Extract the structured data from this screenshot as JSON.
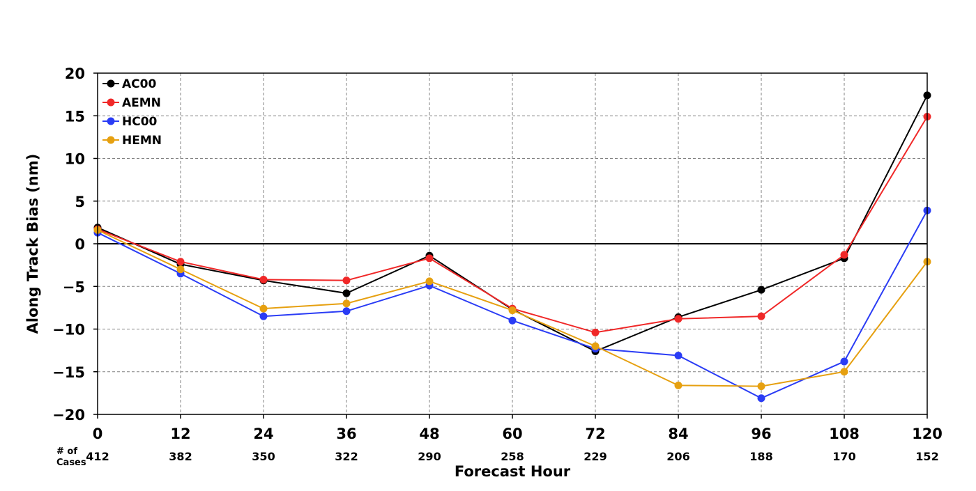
{
  "chart_data": {
    "type": "line",
    "title": "",
    "xlabel": "Forecast Hour",
    "ylabel": "Along Track Bias (nm)",
    "x": [
      0,
      12,
      24,
      36,
      48,
      60,
      72,
      84,
      96,
      108,
      120
    ],
    "xlim": [
      0,
      120
    ],
    "ylim": [
      -20,
      20
    ],
    "x_ticks": [
      0,
      12,
      24,
      36,
      48,
      60,
      72,
      84,
      96,
      108,
      120
    ],
    "y_ticks": [
      20,
      15,
      10,
      5,
      0,
      -5,
      -10,
      -15,
      -20
    ],
    "y_tick_labels": [
      "20",
      "15",
      "10",
      "5",
      "0",
      "−5",
      "−10",
      "−15",
      "−20"
    ],
    "grid": true,
    "zero_line": true,
    "legend_position": "upper-left",
    "cases_label_line1": "# of",
    "cases_label_line2": "Cases",
    "cases": [
      "412",
      "382",
      "350",
      "322",
      "290",
      "258",
      "229",
      "206",
      "188",
      "170",
      "152"
    ],
    "series": [
      {
        "name": "AC00",
        "color": "#000000",
        "values": [
          1.9,
          -2.4,
          -4.3,
          -5.8,
          -1.4,
          -7.7,
          -12.6,
          -8.6,
          -5.4,
          -1.7,
          17.4
        ]
      },
      {
        "name": "AEMN",
        "color": "#f02828",
        "values": [
          1.7,
          -2.1,
          -4.2,
          -4.3,
          -1.7,
          -7.6,
          -10.4,
          -8.8,
          -8.5,
          -1.3,
          14.9
        ]
      },
      {
        "name": "HC00",
        "color": "#2a3cf5",
        "values": [
          1.3,
          -3.5,
          -8.5,
          -7.9,
          -4.9,
          -9.0,
          -12.3,
          -13.1,
          -18.1,
          -13.8,
          3.9
        ]
      },
      {
        "name": "HEMN",
        "color": "#e6a010",
        "values": [
          1.6,
          -3.0,
          -7.6,
          -7.0,
          -4.4,
          -7.8,
          -12.0,
          -16.6,
          -16.7,
          -15.0,
          -2.1
        ]
      }
    ]
  }
}
